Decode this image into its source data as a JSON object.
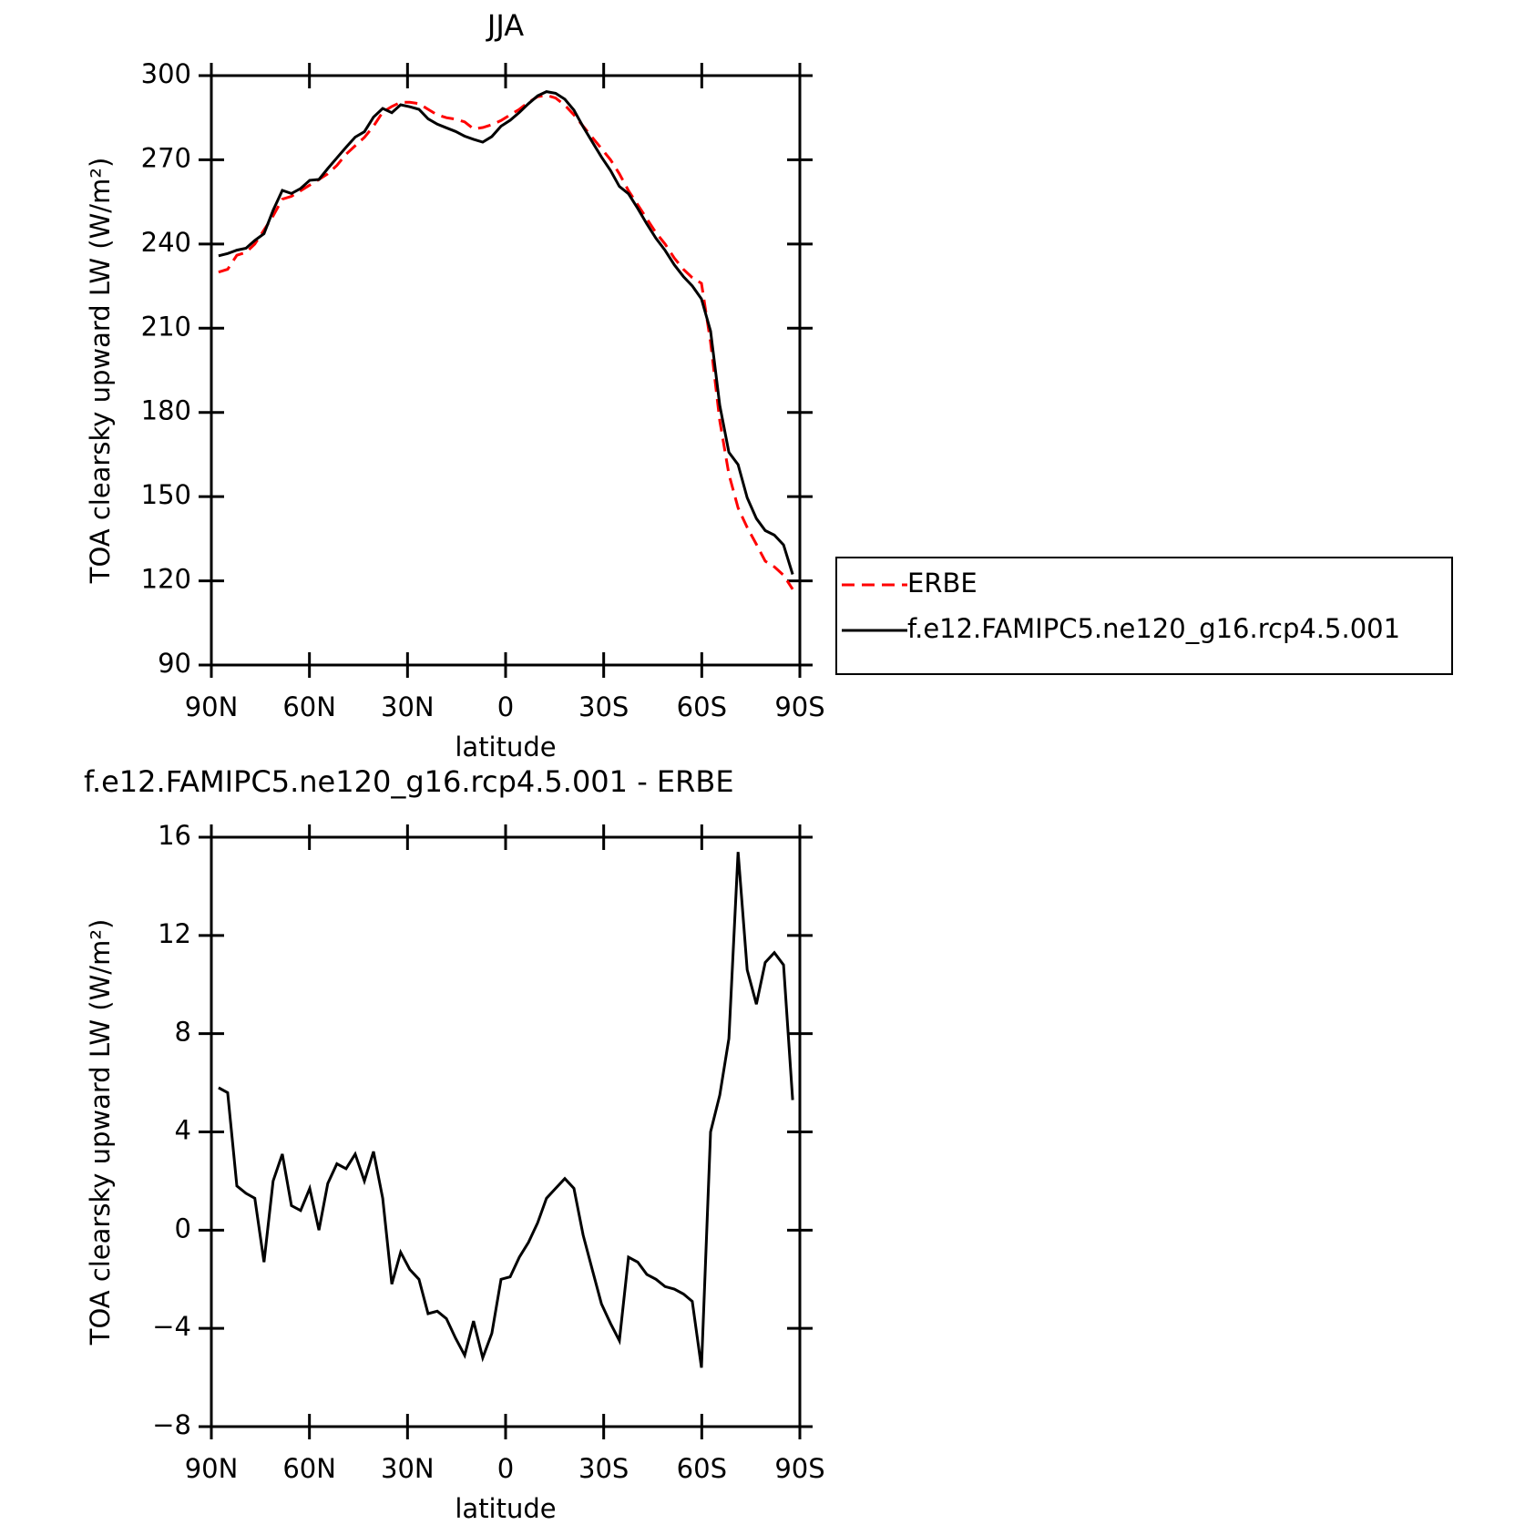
{
  "chart_data": [
    {
      "type": "line",
      "title": "JJA",
      "xlabel": "latitude",
      "ylabel": "TOA clearsky upward LW (W/m²)",
      "x": [
        87.8,
        85.0,
        82.2,
        79.4,
        76.7,
        73.9,
        71.1,
        68.3,
        65.5,
        62.7,
        59.9,
        57.1,
        54.4,
        51.6,
        48.8,
        46.0,
        43.2,
        40.4,
        37.6,
        34.8,
        32.1,
        29.3,
        26.5,
        23.7,
        20.9,
        18.1,
        15.3,
        12.5,
        9.8,
        7.0,
        4.2,
        1.4,
        -1.4,
        -4.2,
        -7.0,
        -9.8,
        -12.5,
        -15.3,
        -18.1,
        -20.9,
        -23.7,
        -26.5,
        -29.3,
        -32.1,
        -34.8,
        -37.6,
        -40.4,
        -43.2,
        -46.0,
        -48.8,
        -51.6,
        -54.4,
        -57.1,
        -59.9,
        -62.7,
        -65.5,
        -68.3,
        -71.1,
        -73.9,
        -76.7,
        -79.4,
        -82.2,
        -85.0,
        -87.8
      ],
      "xlim": [
        90,
        -90
      ],
      "xticks": [
        {
          "value": 90,
          "label": "90N"
        },
        {
          "value": 60,
          "label": "60N"
        },
        {
          "value": 30,
          "label": "30N"
        },
        0,
        {
          "value": -30,
          "label": "30S"
        },
        {
          "value": -60,
          "label": "60S"
        },
        {
          "value": -90,
          "label": "90S"
        }
      ],
      "ylim": [
        90,
        300
      ],
      "yticks": [
        90,
        120,
        150,
        180,
        210,
        240,
        270,
        300
      ],
      "legend": "right",
      "series": [
        {
          "name": "ERBE",
          "color": "#ff0000",
          "line_style": "dashed",
          "values": [
            230,
            231,
            236,
            237,
            240,
            245,
            250,
            256,
            257,
            259,
            261,
            263,
            265,
            268,
            272,
            275,
            278,
            282,
            287,
            289,
            290.5,
            290.5,
            290,
            288,
            286,
            285,
            284.5,
            283.5,
            281,
            281.5,
            282.5,
            284,
            286,
            288,
            290.5,
            292.5,
            293,
            292,
            289.5,
            286,
            282,
            278,
            274,
            270,
            265,
            259,
            254,
            249,
            244,
            240,
            235,
            231,
            228,
            226,
            205,
            177,
            158,
            146,
            139,
            133,
            127,
            125,
            122,
            117
          ]
        },
        {
          "name": "f.e12.FAMIPC5.ne120_g16.rcp4.5.001",
          "color": "#000000",
          "line_style": "solid",
          "values": [
            235.8,
            236.6,
            237.8,
            238.5,
            241.3,
            243.7,
            252,
            259.1,
            258,
            259.8,
            262.7,
            263,
            266.9,
            270.7,
            274.5,
            278.1,
            280,
            285.2,
            288.3,
            286.8,
            289.6,
            288.9,
            288,
            284.6,
            282.7,
            281.4,
            280.1,
            278.4,
            277.3,
            276.3,
            278.3,
            282,
            284.1,
            286.9,
            290,
            292.8,
            294.3,
            293.7,
            291.6,
            287.7,
            281.8,
            276.4,
            271,
            266.2,
            260.5,
            257.9,
            252.7,
            247.2,
            242,
            237.7,
            232.6,
            228.4,
            225.1,
            220.4,
            209,
            182.5,
            165.8,
            161.4,
            149.6,
            142.2,
            137.9,
            136.3,
            132.8,
            122.3
          ]
        }
      ]
    },
    {
      "type": "line",
      "title": "f.e12.FAMIPC5.ne120_g16.rcp4.5.001 - ERBE",
      "xlabel": "latitude",
      "ylabel": "TOA clearsky upward LW (W/m²)",
      "x": [
        87.8,
        85.0,
        82.2,
        79.4,
        76.7,
        73.9,
        71.1,
        68.3,
        65.5,
        62.7,
        59.9,
        57.1,
        54.4,
        51.6,
        48.8,
        46.0,
        43.2,
        40.4,
        37.6,
        34.8,
        32.1,
        29.3,
        26.5,
        23.7,
        20.9,
        18.1,
        15.3,
        12.5,
        9.8,
        7.0,
        4.2,
        1.4,
        -1.4,
        -4.2,
        -7.0,
        -9.8,
        -12.5,
        -15.3,
        -18.1,
        -20.9,
        -23.7,
        -26.5,
        -29.3,
        -32.1,
        -34.8,
        -37.6,
        -40.4,
        -43.2,
        -46.0,
        -48.8,
        -51.6,
        -54.4,
        -57.1,
        -59.9,
        -62.7,
        -65.5,
        -68.3,
        -71.1,
        -73.9,
        -76.7,
        -79.4,
        -82.2,
        -85.0,
        -87.8
      ],
      "xlim": [
        90,
        -90
      ],
      "xticks": [
        {
          "value": 90,
          "label": "90N"
        },
        {
          "value": 60,
          "label": "60N"
        },
        {
          "value": 30,
          "label": "30N"
        },
        0,
        {
          "value": -30,
          "label": "30S"
        },
        {
          "value": -60,
          "label": "60S"
        },
        {
          "value": -90,
          "label": "90S"
        }
      ],
      "ylim": [
        -8,
        16
      ],
      "yticks": [
        {
          "value": -8,
          "label": "−8"
        },
        {
          "value": -4,
          "label": "−4"
        },
        0,
        4,
        8,
        12,
        16
      ],
      "color": "#000000",
      "values": [
        5.8,
        5.6,
        1.8,
        1.5,
        1.3,
        -1.3,
        2.0,
        3.1,
        1.0,
        0.8,
        1.7,
        0.0,
        1.9,
        2.7,
        2.5,
        3.1,
        2.0,
        3.2,
        1.3,
        -2.2,
        -0.9,
        -1.6,
        -2.0,
        -3.4,
        -3.3,
        -3.6,
        -4.4,
        -5.1,
        -3.7,
        -5.2,
        -4.2,
        -2.0,
        -1.9,
        -1.1,
        -0.5,
        0.3,
        1.3,
        1.7,
        2.1,
        1.7,
        -0.2,
        -1.6,
        -3.0,
        -3.8,
        -4.5,
        -1.1,
        -1.3,
        -1.8,
        -2.0,
        -2.3,
        -2.4,
        -2.6,
        -2.9,
        -5.6,
        4.0,
        5.5,
        7.8,
        15.4,
        10.6,
        9.2,
        10.9,
        11.3,
        10.8,
        5.3
      ]
    }
  ]
}
